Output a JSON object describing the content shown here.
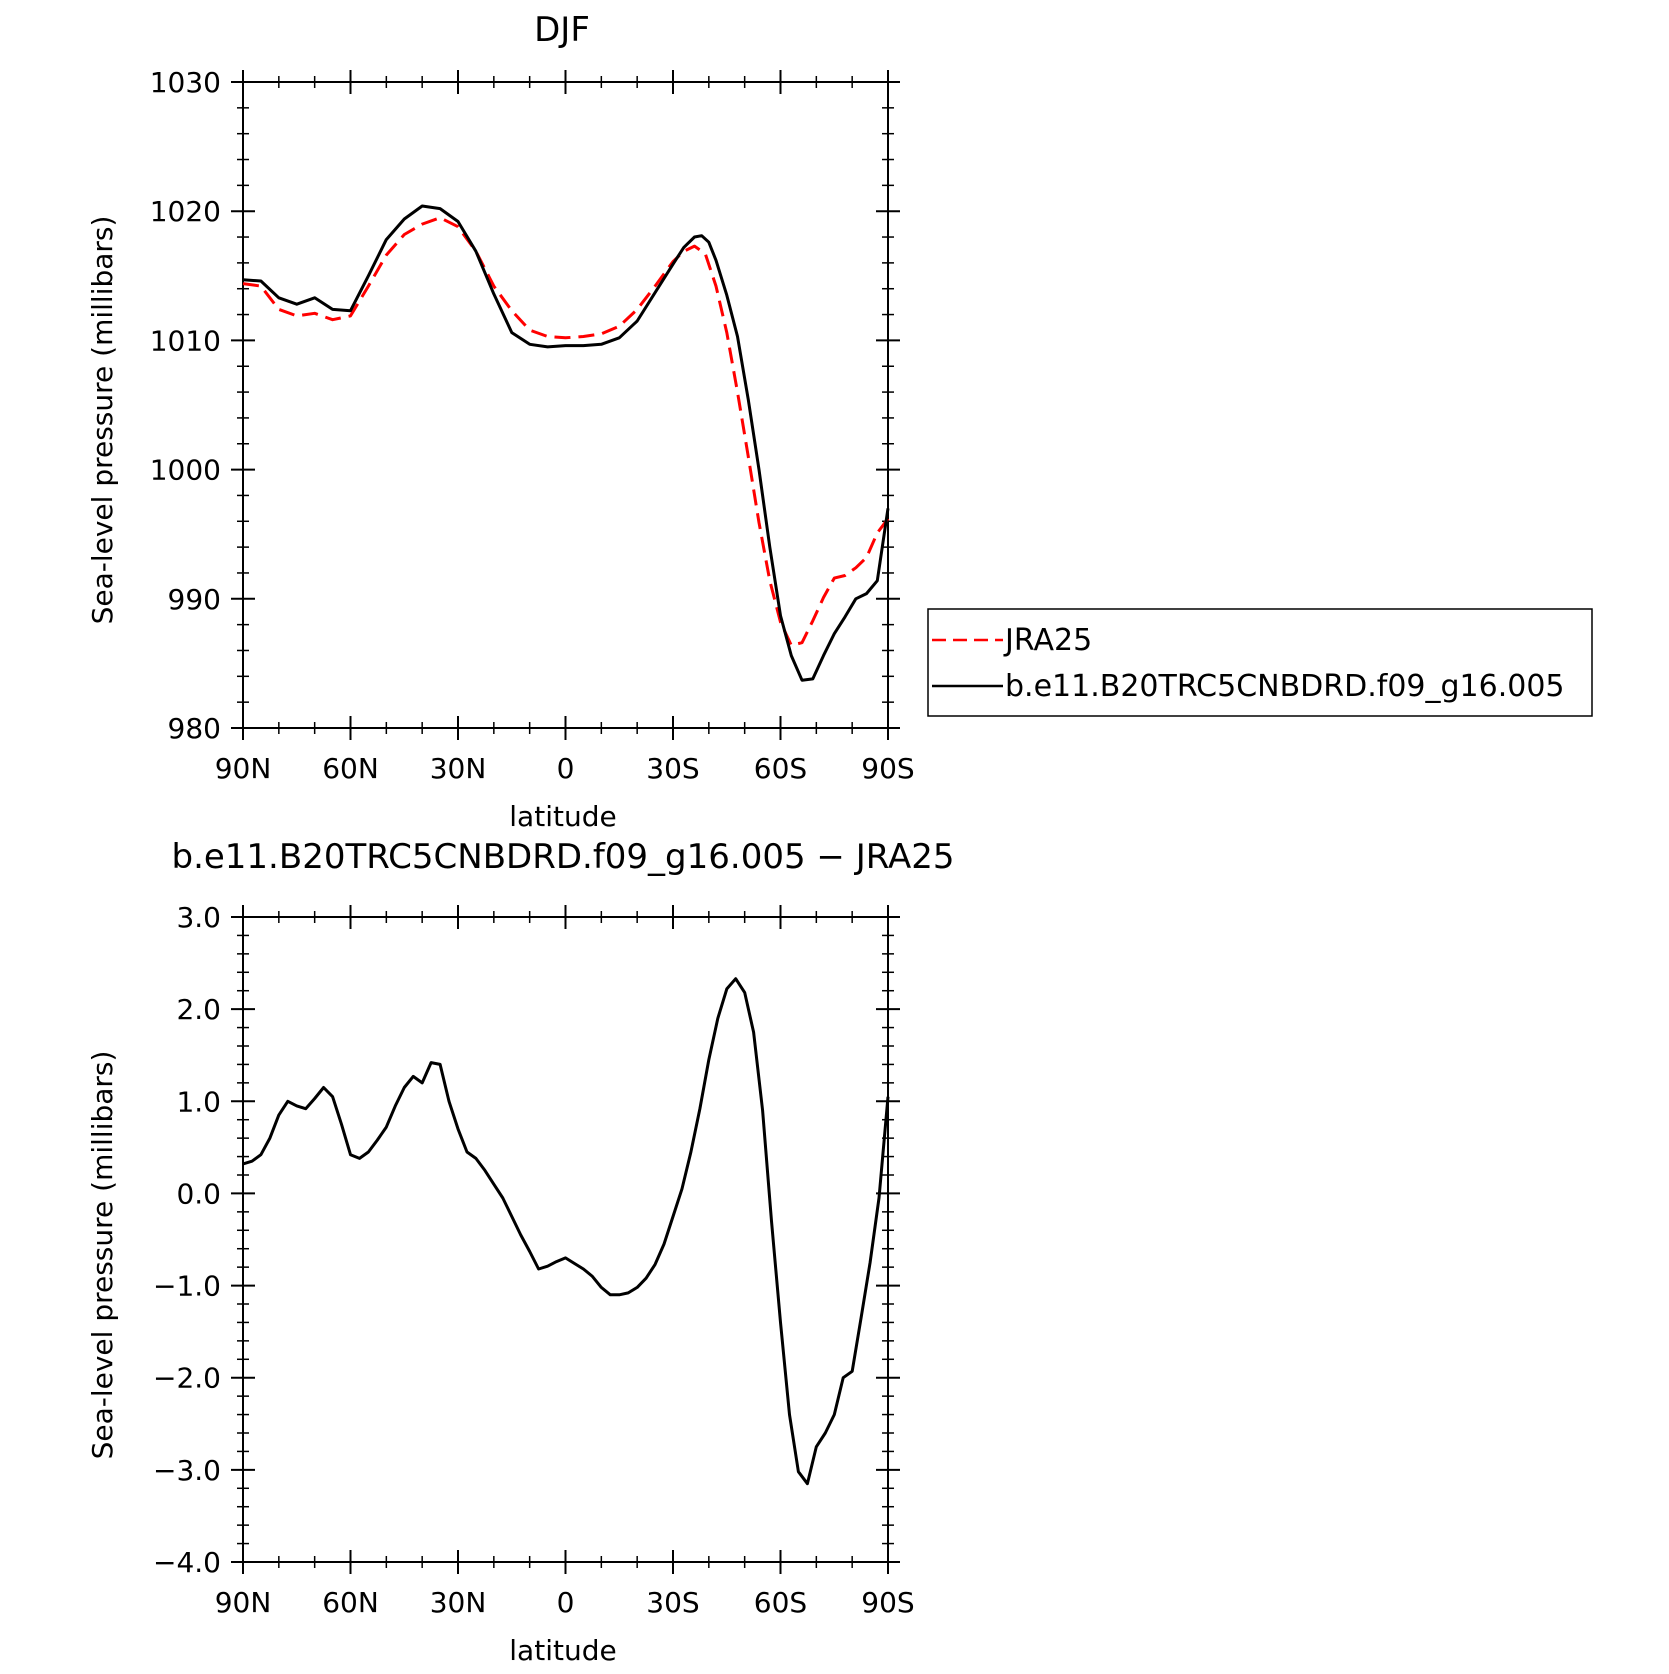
{
  "chart_data": [
    {
      "type": "line",
      "title": "DJF",
      "xlabel": "latitude",
      "ylabel": "Sea-level pressure (millibars)",
      "xlim": [
        90,
        -90
      ],
      "ylim": [
        980,
        1030
      ],
      "xticks": [
        90,
        60,
        30,
        0,
        -30,
        -60,
        -90
      ],
      "xtick_labels": [
        "90N",
        "60N",
        "30N",
        "0",
        "30S",
        "60S",
        "90S"
      ],
      "yticks": [
        980,
        990,
        1000,
        1010,
        1020,
        1030
      ],
      "ytick_labels": [
        "980",
        "990",
        "1000",
        "1010",
        "1020",
        "1030"
      ],
      "legend_position": "right",
      "series": [
        {
          "name": "JRA25",
          "color": "#ff0000",
          "dash": "dashed",
          "x": [
            90,
            85,
            80,
            75,
            70,
            65,
            60,
            55,
            50,
            45,
            40,
            35,
            30,
            25,
            20,
            15,
            10,
            5,
            0,
            -5,
            -10,
            -15,
            -20,
            -25,
            -30,
            -33,
            -36,
            -39,
            -42,
            -45,
            -48,
            -51,
            -54,
            -57,
            -60,
            -63,
            -66,
            -69,
            -72,
            -75,
            -78,
            -81,
            -84,
            -87,
            -90
          ],
          "values": [
            1014.4,
            1014.2,
            1012.4,
            1011.9,
            1012.1,
            1011.6,
            1011.9,
            1014.2,
            1016.6,
            1018.2,
            1019.0,
            1019.5,
            1018.8,
            1016.9,
            1014.2,
            1012.3,
            1010.8,
            1010.3,
            1010.2,
            1010.3,
            1010.5,
            1011.1,
            1012.4,
            1014.2,
            1016.1,
            1016.9,
            1017.3,
            1016.7,
            1014.2,
            1010.6,
            1006.0,
            1001.0,
            995.9,
            991.4,
            988.2,
            986.4,
            986.6,
            988.3,
            990.1,
            991.6,
            991.8,
            992.4,
            993.2,
            995.1,
            996.2
          ]
        },
        {
          "name": "b.e11.B20TRC5CNBDRD.f09_g16.005",
          "color": "#000000",
          "dash": "solid",
          "x": [
            90,
            85,
            80,
            75,
            70,
            65,
            60,
            55,
            50,
            45,
            40,
            35,
            30,
            25,
            20,
            15,
            10,
            5,
            0,
            -5,
            -10,
            -15,
            -20,
            -25,
            -30,
            -33,
            -36,
            -38,
            -40,
            -42,
            -45,
            -48,
            -51,
            -54,
            -57,
            -60,
            -63,
            -66,
            -69,
            -72,
            -75,
            -78,
            -81,
            -84,
            -87,
            -90
          ],
          "values": [
            1014.7,
            1014.6,
            1013.3,
            1012.8,
            1013.3,
            1012.4,
            1012.3,
            1015.0,
            1017.8,
            1019.4,
            1020.4,
            1020.2,
            1019.2,
            1016.9,
            1013.6,
            1010.6,
            1009.7,
            1009.5,
            1009.6,
            1009.6,
            1009.7,
            1010.2,
            1011.5,
            1013.7,
            1015.9,
            1017.2,
            1018.0,
            1018.1,
            1017.6,
            1016.2,
            1013.5,
            1010.3,
            1005.4,
            1000.0,
            994.0,
            988.7,
            985.6,
            983.7,
            983.8,
            985.6,
            987.3,
            988.6,
            990.0,
            990.4,
            991.4,
            997.0
          ]
        }
      ]
    },
    {
      "type": "line",
      "title": "b.e11.B20TRC5CNBDRD.f09_g16.005 − JRA25",
      "xlabel": "latitude",
      "ylabel": "Sea-level pressure (millibars)",
      "xlim": [
        90,
        -90
      ],
      "ylim": [
        -4.0,
        3.0
      ],
      "xticks": [
        90,
        60,
        30,
        0,
        -30,
        -60,
        -90
      ],
      "xtick_labels": [
        "90N",
        "60N",
        "30N",
        "0",
        "30S",
        "60S",
        "90S"
      ],
      "yticks": [
        -4.0,
        -3.0,
        -2.0,
        -1.0,
        0.0,
        1.0,
        2.0,
        3.0
      ],
      "ytick_labels": [
        "−4.0",
        "−3.0",
        "−2.0",
        "−1.0",
        "0.0",
        "1.0",
        "2.0",
        "3.0"
      ],
      "series": [
        {
          "color": "#000000",
          "dash": "solid",
          "x": [
            90,
            87.5,
            85,
            82.5,
            80,
            77.5,
            75,
            72.5,
            70,
            67.5,
            65,
            62.5,
            60,
            57.5,
            55,
            52.5,
            50,
            47.5,
            45,
            42.5,
            40,
            37.5,
            35,
            32.5,
            30,
            27.5,
            25,
            22.5,
            20,
            17.5,
            15,
            12.5,
            10,
            7.5,
            5,
            2.5,
            0,
            -2.5,
            -5,
            -7.5,
            -10,
            -12.5,
            -15,
            -17.5,
            -20,
            -22.5,
            -25,
            -27.5,
            -30,
            -32.5,
            -35,
            -37.5,
            -40,
            -42.5,
            -45,
            -47.5,
            -50,
            -52.5,
            -55,
            -57.5,
            -60,
            -62.5,
            -65,
            -67.5,
            -70,
            -72.5,
            -75,
            -77.5,
            -80,
            -82.5,
            -85,
            -87.5,
            -90
          ],
          "values": [
            0.32,
            0.35,
            0.42,
            0.6,
            0.85,
            1.0,
            0.95,
            0.92,
            1.03,
            1.15,
            1.05,
            0.75,
            0.42,
            0.38,
            0.45,
            0.58,
            0.72,
            0.95,
            1.15,
            1.27,
            1.2,
            1.42,
            1.4,
            1.0,
            0.7,
            0.45,
            0.38,
            0.25,
            0.1,
            -0.05,
            -0.25,
            -0.45,
            -0.63,
            -0.82,
            -0.79,
            -0.74,
            -0.7,
            -0.76,
            -0.82,
            -0.9,
            -1.02,
            -1.1,
            -1.1,
            -1.08,
            -1.02,
            -0.92,
            -0.77,
            -0.55,
            -0.25,
            0.05,
            0.45,
            0.92,
            1.45,
            1.9,
            2.22,
            2.33,
            2.18,
            1.75,
            0.9,
            -0.3,
            -1.4,
            -2.4,
            -3.02,
            -3.15,
            -2.75,
            -2.6,
            -2.4,
            -2.0,
            -1.93,
            -1.35,
            -0.75,
            -0.05,
            1.05
          ]
        }
      ]
    }
  ],
  "legend": {
    "items": [
      {
        "label": "JRA25",
        "color": "#ff0000",
        "dash": "dashed"
      },
      {
        "label": "b.e11.B20TRC5CNBDRD.f09_g16.005",
        "color": "#000000",
        "dash": "solid"
      }
    ]
  }
}
